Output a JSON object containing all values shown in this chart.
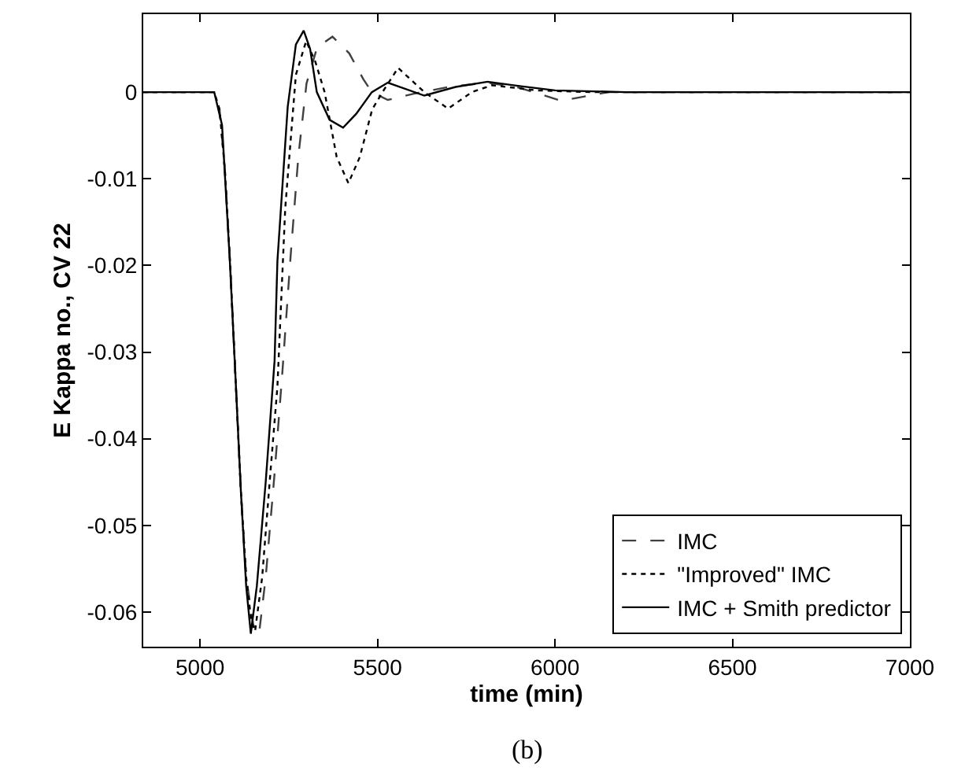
{
  "chart_data": {
    "type": "line",
    "xlabel": "time (min)",
    "ylabel": "E Kappa no., CV 22",
    "annotations": [
      "(b)"
    ],
    "xlim": [
      4840,
      7000
    ],
    "xticks": [
      5000,
      5500,
      6000,
      6500,
      7000
    ],
    "ylim": [
      -0.064,
      0.009
    ],
    "yticks": [
      -0.06,
      -0.05,
      -0.04,
      -0.03,
      -0.02,
      -0.01,
      0
    ],
    "legend": "bottom right",
    "marker": "none",
    "series": [
      {
        "name": "IMC",
        "color": "#404040",
        "line_style": "dashed",
        "x": [
          4840,
          5040,
          5055,
          5070,
          5085,
          5100,
          5115,
          5130,
          5150,
          5166,
          5185,
          5210,
          5232,
          5255,
          5277,
          5300,
          5330,
          5373,
          5420,
          5460,
          5484,
          5529,
          5600,
          5700,
          5810,
          5900,
          6018,
          6150,
          6400,
          7000
        ],
        "values": [
          0,
          0,
          -0.002,
          -0.009,
          -0.02,
          -0.033,
          -0.046,
          -0.056,
          -0.0615,
          -0.0626,
          -0.056,
          -0.044,
          -0.0323,
          -0.019,
          -0.0074,
          0.001,
          0.0052,
          0.0064,
          0.0045,
          0.0015,
          0,
          -0.0009,
          -0.0002,
          0.0006,
          0.0011,
          0.0005,
          -0.001,
          0,
          0,
          0
        ]
      },
      {
        "name": "\"Improved\" IMC",
        "color": "#000000",
        "line_style": "dotted",
        "x": [
          4840,
          5040,
          5055,
          5070,
          5085,
          5100,
          5115,
          5130,
          5145,
          5155,
          5175,
          5200,
          5218,
          5240,
          5270,
          5299,
          5325,
          5351,
          5385,
          5418,
          5450,
          5485,
          5514,
          5558,
          5632,
          5699,
          5766,
          5822,
          5950,
          6100,
          7000
        ],
        "values": [
          0,
          0,
          -0.002,
          -0.009,
          -0.02,
          -0.033,
          -0.046,
          -0.056,
          -0.0612,
          -0.0622,
          -0.056,
          -0.043,
          -0.034,
          -0.0134,
          0.002,
          0.0059,
          0.0035,
          0,
          -0.0075,
          -0.0105,
          -0.0075,
          -0.002,
          0,
          0.0028,
          0,
          -0.0019,
          0,
          0.0008,
          0.0002,
          0,
          0
        ]
      },
      {
        "name": "IMC + Smith predictor",
        "color": "#000000",
        "line_style": "solid",
        "x": [
          4840,
          5040,
          5062,
          5084,
          5100,
          5115,
          5130,
          5143,
          5160,
          5185,
          5210,
          5218,
          5247,
          5270,
          5292,
          5310,
          5329,
          5365,
          5403,
          5440,
          5484,
          5529,
          5632,
          5720,
          5810,
          5900,
          6000,
          6200,
          7000
        ],
        "values": [
          0,
          0,
          -0.0038,
          -0.0195,
          -0.033,
          -0.046,
          -0.057,
          -0.0625,
          -0.057,
          -0.045,
          -0.031,
          -0.0195,
          -0.0017,
          0.0055,
          0.0071,
          0.005,
          0,
          -0.0032,
          -0.0041,
          -0.0025,
          0,
          0.0011,
          -0.0004,
          0.0006,
          0.0012,
          0.0007,
          0.0002,
          0,
          0
        ]
      }
    ]
  }
}
